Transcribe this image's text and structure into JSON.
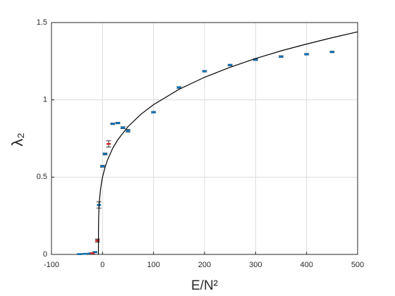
{
  "chart_data": {
    "type": "scatter",
    "xlabel": "E/N²",
    "ylabel": "λ₂",
    "xlim": [
      -100,
      500
    ],
    "ylim": [
      0,
      1.5
    ],
    "xticks": [
      -100,
      0,
      100,
      200,
      300,
      400,
      500
    ],
    "yticks": [
      0,
      0.5,
      1,
      1.5
    ],
    "grid": true,
    "series": [
      {
        "color": "#0072bd",
        "x": [
          -45,
          -35,
          -25,
          -15,
          -7,
          0,
          5,
          20,
          30,
          40,
          50,
          100,
          150,
          200,
          250,
          300,
          350,
          400,
          450
        ],
        "values": [
          0.002,
          0.004,
          0.006,
          0.015,
          0.32,
          0.57,
          0.65,
          0.845,
          0.85,
          0.82,
          0.8,
          0.92,
          1.08,
          1.185,
          1.225,
          1.26,
          1.28,
          1.295,
          1.31
        ],
        "errors": [
          0.003,
          0.003,
          0.003,
          0.004,
          0.02,
          0.006,
          0.006,
          0.005,
          0.005,
          0.006,
          0.008,
          0.005,
          0.005,
          0.005,
          0.005,
          0.005,
          0.005,
          0.005,
          0.005
        ]
      },
      {
        "color": "#d62728",
        "x": [
          -20,
          -10,
          12
        ],
        "values": [
          0.008,
          0.09,
          0.715
        ],
        "errors": [
          0.003,
          0.01,
          0.02
        ]
      },
      {
        "type": "line",
        "color": "#000000",
        "x": [
          -8,
          -7.99,
          -7.9,
          -7.5,
          -7,
          -6,
          -4,
          -2,
          0,
          5,
          10,
          20,
          30,
          50,
          75,
          100,
          150,
          200,
          250,
          300,
          350,
          400,
          450,
          500
        ],
        "values": [
          0,
          0.09,
          0.163,
          0.245,
          0.293,
          0.35,
          0.418,
          0.463,
          0.5,
          0.564,
          0.613,
          0.687,
          0.742,
          0.827,
          0.906,
          0.969,
          1.068,
          1.146,
          1.211,
          1.267,
          1.317,
          1.361,
          1.402,
          1.44
        ]
      }
    ]
  }
}
